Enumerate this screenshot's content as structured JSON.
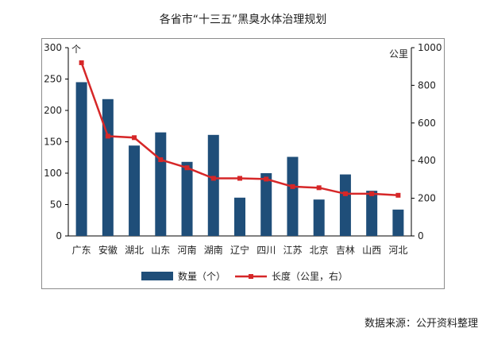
{
  "title": "各省市“十三五”黑臭水体治理规划",
  "source": "数据来源：公开资料整理",
  "colors": {
    "bar": "#1f4e79",
    "line": "#d62728"
  },
  "chart_data": {
    "type": "bar+line",
    "categories": [
      "广东",
      "安徽",
      "湖北",
      "山东",
      "河南",
      "湖南",
      "辽宁",
      "四川",
      "江苏",
      "北京",
      "吉林",
      "山西",
      "河北"
    ],
    "series": [
      {
        "name": "数量（个）",
        "type": "bar",
        "axis": "left",
        "values": [
          245,
          218,
          144,
          165,
          118,
          161,
          61,
          100,
          126,
          58,
          98,
          72,
          42
        ]
      },
      {
        "name": "长度（公里，右）",
        "type": "line",
        "axis": "right",
        "values": [
          920,
          530,
          522,
          405,
          362,
          306,
          306,
          302,
          262,
          256,
          224,
          224,
          216
        ]
      }
    ],
    "y_left": {
      "unit": "个",
      "min": 0,
      "max": 300,
      "ticks": [
        0,
        50,
        100,
        150,
        200,
        250,
        300
      ]
    },
    "y_right": {
      "unit": "公里",
      "min": 0,
      "max": 1000,
      "ticks": [
        0,
        200,
        400,
        600,
        800,
        1000
      ]
    },
    "grid": false,
    "legend": "bottom"
  }
}
